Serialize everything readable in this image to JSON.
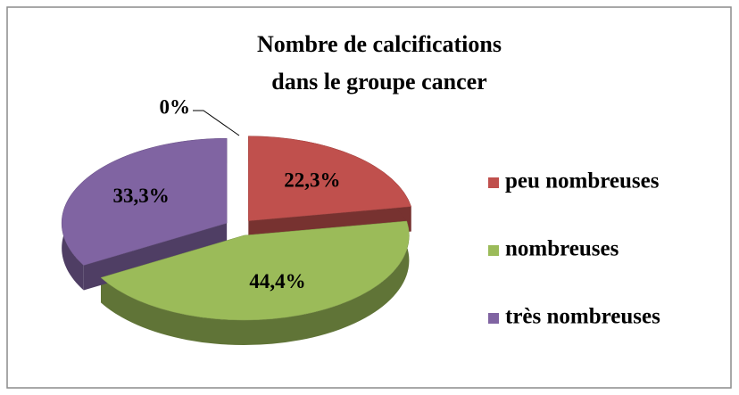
{
  "chart_data": {
    "type": "pie3d",
    "title": [
      "Nombre de calcifications",
      "dans le groupe cancer"
    ],
    "categories": [
      "peu nombreuses",
      "nombreuses",
      "très nombreuses",
      null
    ],
    "values": [
      22.3,
      44.4,
      33.3,
      0
    ],
    "value_labels": [
      "22,3%",
      "44,4%",
      "33,3%",
      "0%"
    ],
    "colors": [
      "#c0504d",
      "#9bbb59",
      "#8064a2",
      "#4bacc6"
    ],
    "legend": "right"
  }
}
